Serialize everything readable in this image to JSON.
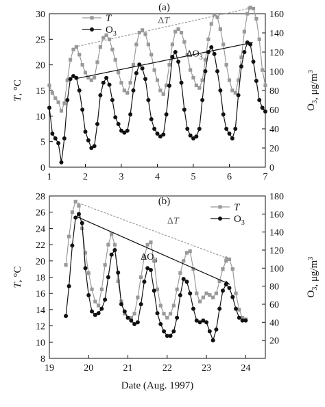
{
  "chart_data": [
    {
      "type": "line",
      "panel_label": "(a)",
      "xlabel": "",
      "ylabel_left": "T, °C",
      "ylabel_right": "O3, μg/m3",
      "xlim": [
        1,
        7
      ],
      "ylim_left": [
        0,
        30
      ],
      "ylim_right": [
        0,
        160
      ],
      "x_ticks": [
        "1",
        "2",
        "3",
        "4",
        "5",
        "6",
        "7"
      ],
      "y_ticks_left": [
        "0",
        "5",
        "10",
        "15",
        "20",
        "25",
        "30"
      ],
      "y_ticks_right": [
        "0",
        "20",
        "40",
        "60",
        "80",
        "100",
        "120",
        "140",
        "160"
      ],
      "legend": {
        "placement": "top-left",
        "entries": [
          "T",
          "O3"
        ]
      },
      "series": [
        {
          "name": "T",
          "axis": "left",
          "color": "#999999",
          "marker": "square",
          "x": [
            1.0,
            1.083,
            1.167,
            1.25,
            1.333,
            1.417,
            1.5,
            1.583,
            1.667,
            1.75,
            1.833,
            1.917,
            2.0,
            2.083,
            2.167,
            2.25,
            2.333,
            2.417,
            2.5,
            2.583,
            2.667,
            2.75,
            2.833,
            2.917,
            3.0,
            3.083,
            3.167,
            3.25,
            3.333,
            3.417,
            3.5,
            3.583,
            3.667,
            3.75,
            3.833,
            3.917,
            4.0,
            4.083,
            4.167,
            4.25,
            4.333,
            4.417,
            4.5,
            4.583,
            4.667,
            4.75,
            4.833,
            4.917,
            5.0,
            5.083,
            5.167,
            5.25,
            5.333,
            5.417,
            5.5,
            5.583,
            5.667,
            5.75,
            5.833,
            5.917,
            6.0,
            6.083,
            6.167,
            6.25,
            6.333,
            6.417,
            6.5,
            6.583,
            6.667,
            6.75,
            6.833,
            6.917,
            7.0
          ],
          "values": [
            16.0,
            14.5,
            13.5,
            12.7,
            11.0,
            12.5,
            17.0,
            21.0,
            23.0,
            23.5,
            22.0,
            20.0,
            18.5,
            17.5,
            17.0,
            17.5,
            20.5,
            23.5,
            25.3,
            25.8,
            25.0,
            23.0,
            21.0,
            18.5,
            16.5,
            15.0,
            14.5,
            16.5,
            20.0,
            24.0,
            26.3,
            26.8,
            26.0,
            24.0,
            22.0,
            19.0,
            17.0,
            15.0,
            14.3,
            16.0,
            20.0,
            24.0,
            26.5,
            27.0,
            26.3,
            24.5,
            22.0,
            19.0,
            17.5,
            16.0,
            15.5,
            17.0,
            21.0,
            25.0,
            28.0,
            29.8,
            29.3,
            27.0,
            24.0,
            20.0,
            17.0,
            15.0,
            14.5,
            17.0,
            21.5,
            26.5,
            30.0,
            31.2,
            31.0,
            29.0,
            25.0,
            19.0,
            16.0
          ]
        },
        {
          "name": "O3",
          "axis": "right",
          "color": "#111111",
          "marker": "circle",
          "x": [
            1.0,
            1.083,
            1.167,
            1.25,
            1.333,
            1.417,
            1.5,
            1.583,
            1.667,
            1.75,
            1.833,
            1.917,
            2.0,
            2.083,
            2.167,
            2.25,
            2.333,
            2.417,
            2.5,
            2.583,
            2.667,
            2.75,
            2.833,
            2.917,
            3.0,
            3.083,
            3.167,
            3.25,
            3.333,
            3.417,
            3.5,
            3.583,
            3.667,
            3.75,
            3.833,
            3.917,
            4.0,
            4.083,
            4.167,
            4.25,
            4.333,
            4.417,
            4.5,
            4.583,
            4.667,
            4.75,
            4.833,
            4.917,
            5.0,
            5.083,
            5.167,
            5.25,
            5.333,
            5.417,
            5.5,
            5.583,
            5.667,
            5.75,
            5.833,
            5.917,
            6.0,
            6.083,
            6.167,
            6.25,
            6.333,
            6.417,
            6.5,
            6.583,
            6.667,
            6.75,
            6.833,
            6.917,
            7.0
          ],
          "values": [
            62.0,
            35.0,
            30.0,
            25.0,
            5.0,
            30.0,
            70.0,
            92.0,
            95.0,
            93.0,
            80.0,
            60.0,
            37.0,
            28.0,
            20.0,
            22.0,
            45.0,
            75.0,
            88.0,
            93.0,
            86.0,
            70.0,
            52.0,
            45.0,
            38.0,
            36.0,
            38.0,
            55.0,
            80.0,
            98.0,
            107.0,
            103.0,
            92.0,
            70.0,
            50.0,
            40.0,
            35.0,
            32.0,
            34.0,
            55.0,
            85.0,
            115.0,
            120.0,
            110.0,
            88.0,
            60.0,
            40.0,
            33.0,
            30.0,
            32.0,
            40.0,
            70.0,
            100.0,
            120.0,
            125.0,
            118.0,
            100.0,
            80.0,
            55.0,
            40.0,
            35.0,
            30.0,
            40.0,
            75.0,
            105.0,
            120.0,
            130.0,
            128.0,
            110.0,
            90.0,
            70.0,
            62.0,
            58.0
          ]
        }
      ],
      "annotations": [
        {
          "text": "ΔT",
          "series": "T",
          "from": [
            1.7,
            23.5
          ],
          "to": [
            6.65,
            31.2
          ]
        },
        {
          "text": "ΔO3",
          "series": "O3",
          "from": [
            1.7,
            92
          ],
          "to": [
            6.65,
            130
          ]
        }
      ]
    },
    {
      "type": "line",
      "panel_label": "(b)",
      "xlabel": "Date (Aug. 1997)",
      "ylabel_left": "T, °C",
      "ylabel_right": "O3, μg/m3",
      "xlim": [
        19,
        24.5
      ],
      "ylim_left": [
        8,
        28
      ],
      "ylim_right": [
        0,
        180
      ],
      "x_ticks": [
        "19",
        "20",
        "21",
        "22",
        "23",
        "24"
      ],
      "y_ticks_left": [
        "8",
        "10",
        "12",
        "14",
        "16",
        "18",
        "20",
        "22",
        "24",
        "26",
        "28"
      ],
      "y_ticks_right": [
        "20",
        "40",
        "60",
        "80",
        "100",
        "120",
        "140",
        "160",
        "180"
      ],
      "legend": {
        "placement": "top-right",
        "entries": [
          "T",
          "O3"
        ]
      },
      "series": [
        {
          "name": "T",
          "axis": "left",
          "color": "#999999",
          "marker": "square",
          "x": [
            19.42,
            19.5,
            19.583,
            19.667,
            19.75,
            19.833,
            19.917,
            20.0,
            20.083,
            20.167,
            20.25,
            20.333,
            20.417,
            20.5,
            20.583,
            20.667,
            20.75,
            20.833,
            20.917,
            21.0,
            21.083,
            21.167,
            21.25,
            21.333,
            21.417,
            21.5,
            21.583,
            21.667,
            21.75,
            21.833,
            21.917,
            22.0,
            22.083,
            22.167,
            22.25,
            22.333,
            22.417,
            22.5,
            22.583,
            22.667,
            22.75,
            22.833,
            22.917,
            23.0,
            23.083,
            23.167,
            23.25,
            23.333,
            23.417,
            23.5,
            23.583,
            23.667,
            23.75,
            23.833,
            23.917,
            24.0
          ],
          "values": [
            19.5,
            23.0,
            26.0,
            27.3,
            26.8,
            24.0,
            21.0,
            18.5,
            16.5,
            15.0,
            14.5,
            16.5,
            19.5,
            22.0,
            23.3,
            22.0,
            17.5,
            15.0,
            13.5,
            13.0,
            13.0,
            13.5,
            15.5,
            18.0,
            20.5,
            22.0,
            22.3,
            20.0,
            16.5,
            14.5,
            13.5,
            13.0,
            13.5,
            14.5,
            16.5,
            18.5,
            20.0,
            21.0,
            21.2,
            19.0,
            16.0,
            15.0,
            15.5,
            16.0,
            15.8,
            15.5,
            16.0,
            17.5,
            19.0,
            20.0,
            20.2,
            19.0,
            16.0,
            14.0,
            13.0,
            12.8
          ]
        },
        {
          "name": "O3",
          "axis": "right",
          "color": "#111111",
          "marker": "circle",
          "x": [
            19.42,
            19.5,
            19.583,
            19.667,
            19.75,
            19.833,
            19.917,
            20.0,
            20.083,
            20.167,
            20.25,
            20.333,
            20.417,
            20.5,
            20.583,
            20.667,
            20.75,
            20.833,
            20.917,
            21.0,
            21.083,
            21.167,
            21.25,
            21.333,
            21.417,
            21.5,
            21.583,
            21.667,
            21.75,
            21.833,
            21.917,
            22.0,
            22.083,
            22.167,
            22.25,
            22.333,
            22.417,
            22.5,
            22.583,
            22.667,
            22.75,
            22.833,
            22.917,
            23.0,
            23.083,
            23.167,
            23.25,
            23.333,
            23.417,
            23.5,
            23.583,
            23.667,
            23.75,
            23.833,
            23.917,
            24.0
          ],
          "values": [
            47.0,
            80.0,
            125.0,
            156.0,
            160.0,
            150.0,
            100.0,
            70.0,
            52.0,
            48.0,
            50.0,
            55.0,
            65.0,
            90.0,
            115.0,
            120.0,
            95.0,
            60.0,
            52.0,
            45.0,
            42.0,
            38.0,
            40.0,
            60.0,
            85.0,
            100.0,
            98.0,
            75.0,
            50.0,
            38.0,
            30.0,
            25.0,
            25.0,
            30.0,
            45.0,
            70.0,
            88.0,
            85.0,
            72.0,
            55.0,
            42.0,
            40.0,
            42.0,
            40.0,
            30.0,
            20.0,
            32.0,
            55.0,
            75.0,
            82.0,
            78.0,
            68.0,
            55.0,
            45.0,
            42.0,
            42.0
          ]
        }
      ],
      "annotations": [
        {
          "text": "ΔT",
          "series": "T",
          "from": [
            19.65,
            27.3
          ],
          "to": [
            23.6,
            20.2
          ]
        },
        {
          "text": "ΔO3",
          "series": "O3",
          "from": [
            19.65,
            158
          ],
          "to": [
            23.6,
            82
          ]
        }
      ]
    }
  ]
}
